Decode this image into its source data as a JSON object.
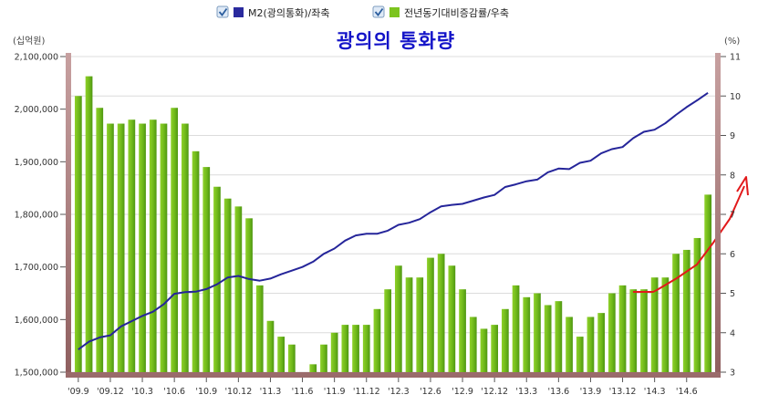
{
  "chart_data": {
    "type": "bar+line",
    "title": "광의의 통화량",
    "left_unit": "(십억원)",
    "right_unit": "(%)",
    "legend": [
      {
        "label": "M2(광의통화)/좌축",
        "color": "#2a2a9e",
        "marker": "line",
        "checked": true
      },
      {
        "label": "전년동기대비증감률/우축",
        "color": "#7cc41f",
        "marker": "bar",
        "checked": true
      }
    ],
    "y_left": {
      "min": 1500000,
      "max": 2100000,
      "ticks": [
        "1,500,000",
        "1,600,000",
        "1,700,000",
        "1,800,000",
        "1,900,000",
        "2,000,000",
        "2,100,000"
      ]
    },
    "y_right": {
      "min": 3,
      "max": 11,
      "ticks": [
        "3",
        "4",
        "5",
        "6",
        "7",
        "8",
        "9",
        "10",
        "11"
      ]
    },
    "x_tick_labels": [
      {
        "index": 0,
        "label": "'09.9"
      },
      {
        "index": 3,
        "label": "'09.12"
      },
      {
        "index": 6,
        "label": "'10.3"
      },
      {
        "index": 9,
        "label": "'10.6"
      },
      {
        "index": 12,
        "label": "'10.9"
      },
      {
        "index": 15,
        "label": "'10.12"
      },
      {
        "index": 18,
        "label": "'11.3"
      },
      {
        "index": 21,
        "label": "'11.6"
      },
      {
        "index": 24,
        "label": "'11.9"
      },
      {
        "index": 27,
        "label": "'11.12"
      },
      {
        "index": 30,
        "label": "'12.3"
      },
      {
        "index": 33,
        "label": "'12.6"
      },
      {
        "index": 36,
        "label": "'12.9"
      },
      {
        "index": 39,
        "label": "'12.12"
      },
      {
        "index": 42,
        "label": "'13.3"
      },
      {
        "index": 45,
        "label": "'13.6"
      },
      {
        "index": 48,
        "label": "'13.9"
      },
      {
        "index": 51,
        "label": "'13.12"
      },
      {
        "index": 54,
        "label": "'14.3"
      },
      {
        "index": 57,
        "label": "'14.6"
      }
    ],
    "series": [
      {
        "name": "M2(광의통화)/좌축",
        "axis": "left",
        "type": "line",
        "values": [
          1543000,
          1558000,
          1566000,
          1570000,
          1587000,
          1597000,
          1607000,
          1615000,
          1629000,
          1649000,
          1652000,
          1653000,
          1658000,
          1667000,
          1680000,
          1683000,
          1677000,
          1674000,
          1678000,
          1686000,
          1693000,
          1700000,
          1710000,
          1725000,
          1735000,
          1750000,
          1760000,
          1763000,
          1763000,
          1769000,
          1780000,
          1784000,
          1791000,
          1804000,
          1815000,
          1818000,
          1820000,
          1826000,
          1832000,
          1837000,
          1852000,
          1857000,
          1863000,
          1866000,
          1880000,
          1887000,
          1886000,
          1898000,
          1902000,
          1916000,
          1924000,
          1928000,
          1945000,
          1957000,
          1961000,
          1973000,
          1989000,
          2004000,
          2017000,
          2031000
        ]
      },
      {
        "name": "전년동기대비증감률/우축",
        "axis": "right",
        "type": "bar",
        "values": [
          10.0,
          10.5,
          9.7,
          9.3,
          9.3,
          9.4,
          9.3,
          9.4,
          9.3,
          9.7,
          9.3,
          8.6,
          8.2,
          7.7,
          7.4,
          7.2,
          6.9,
          5.2,
          4.3,
          3.9,
          3.7,
          2.7,
          3.2,
          3.7,
          4.0,
          4.2,
          4.2,
          4.2,
          4.6,
          5.1,
          5.7,
          5.4,
          5.4,
          5.9,
          6.0,
          5.7,
          5.1,
          4.4,
          4.1,
          4.2,
          4.6,
          5.2,
          4.9,
          5.0,
          4.7,
          4.8,
          4.4,
          3.9,
          4.4,
          4.5,
          5.0,
          5.2,
          5.1,
          5.1,
          5.4,
          5.4,
          6.0,
          6.1,
          6.4,
          7.5
        ]
      }
    ]
  }
}
